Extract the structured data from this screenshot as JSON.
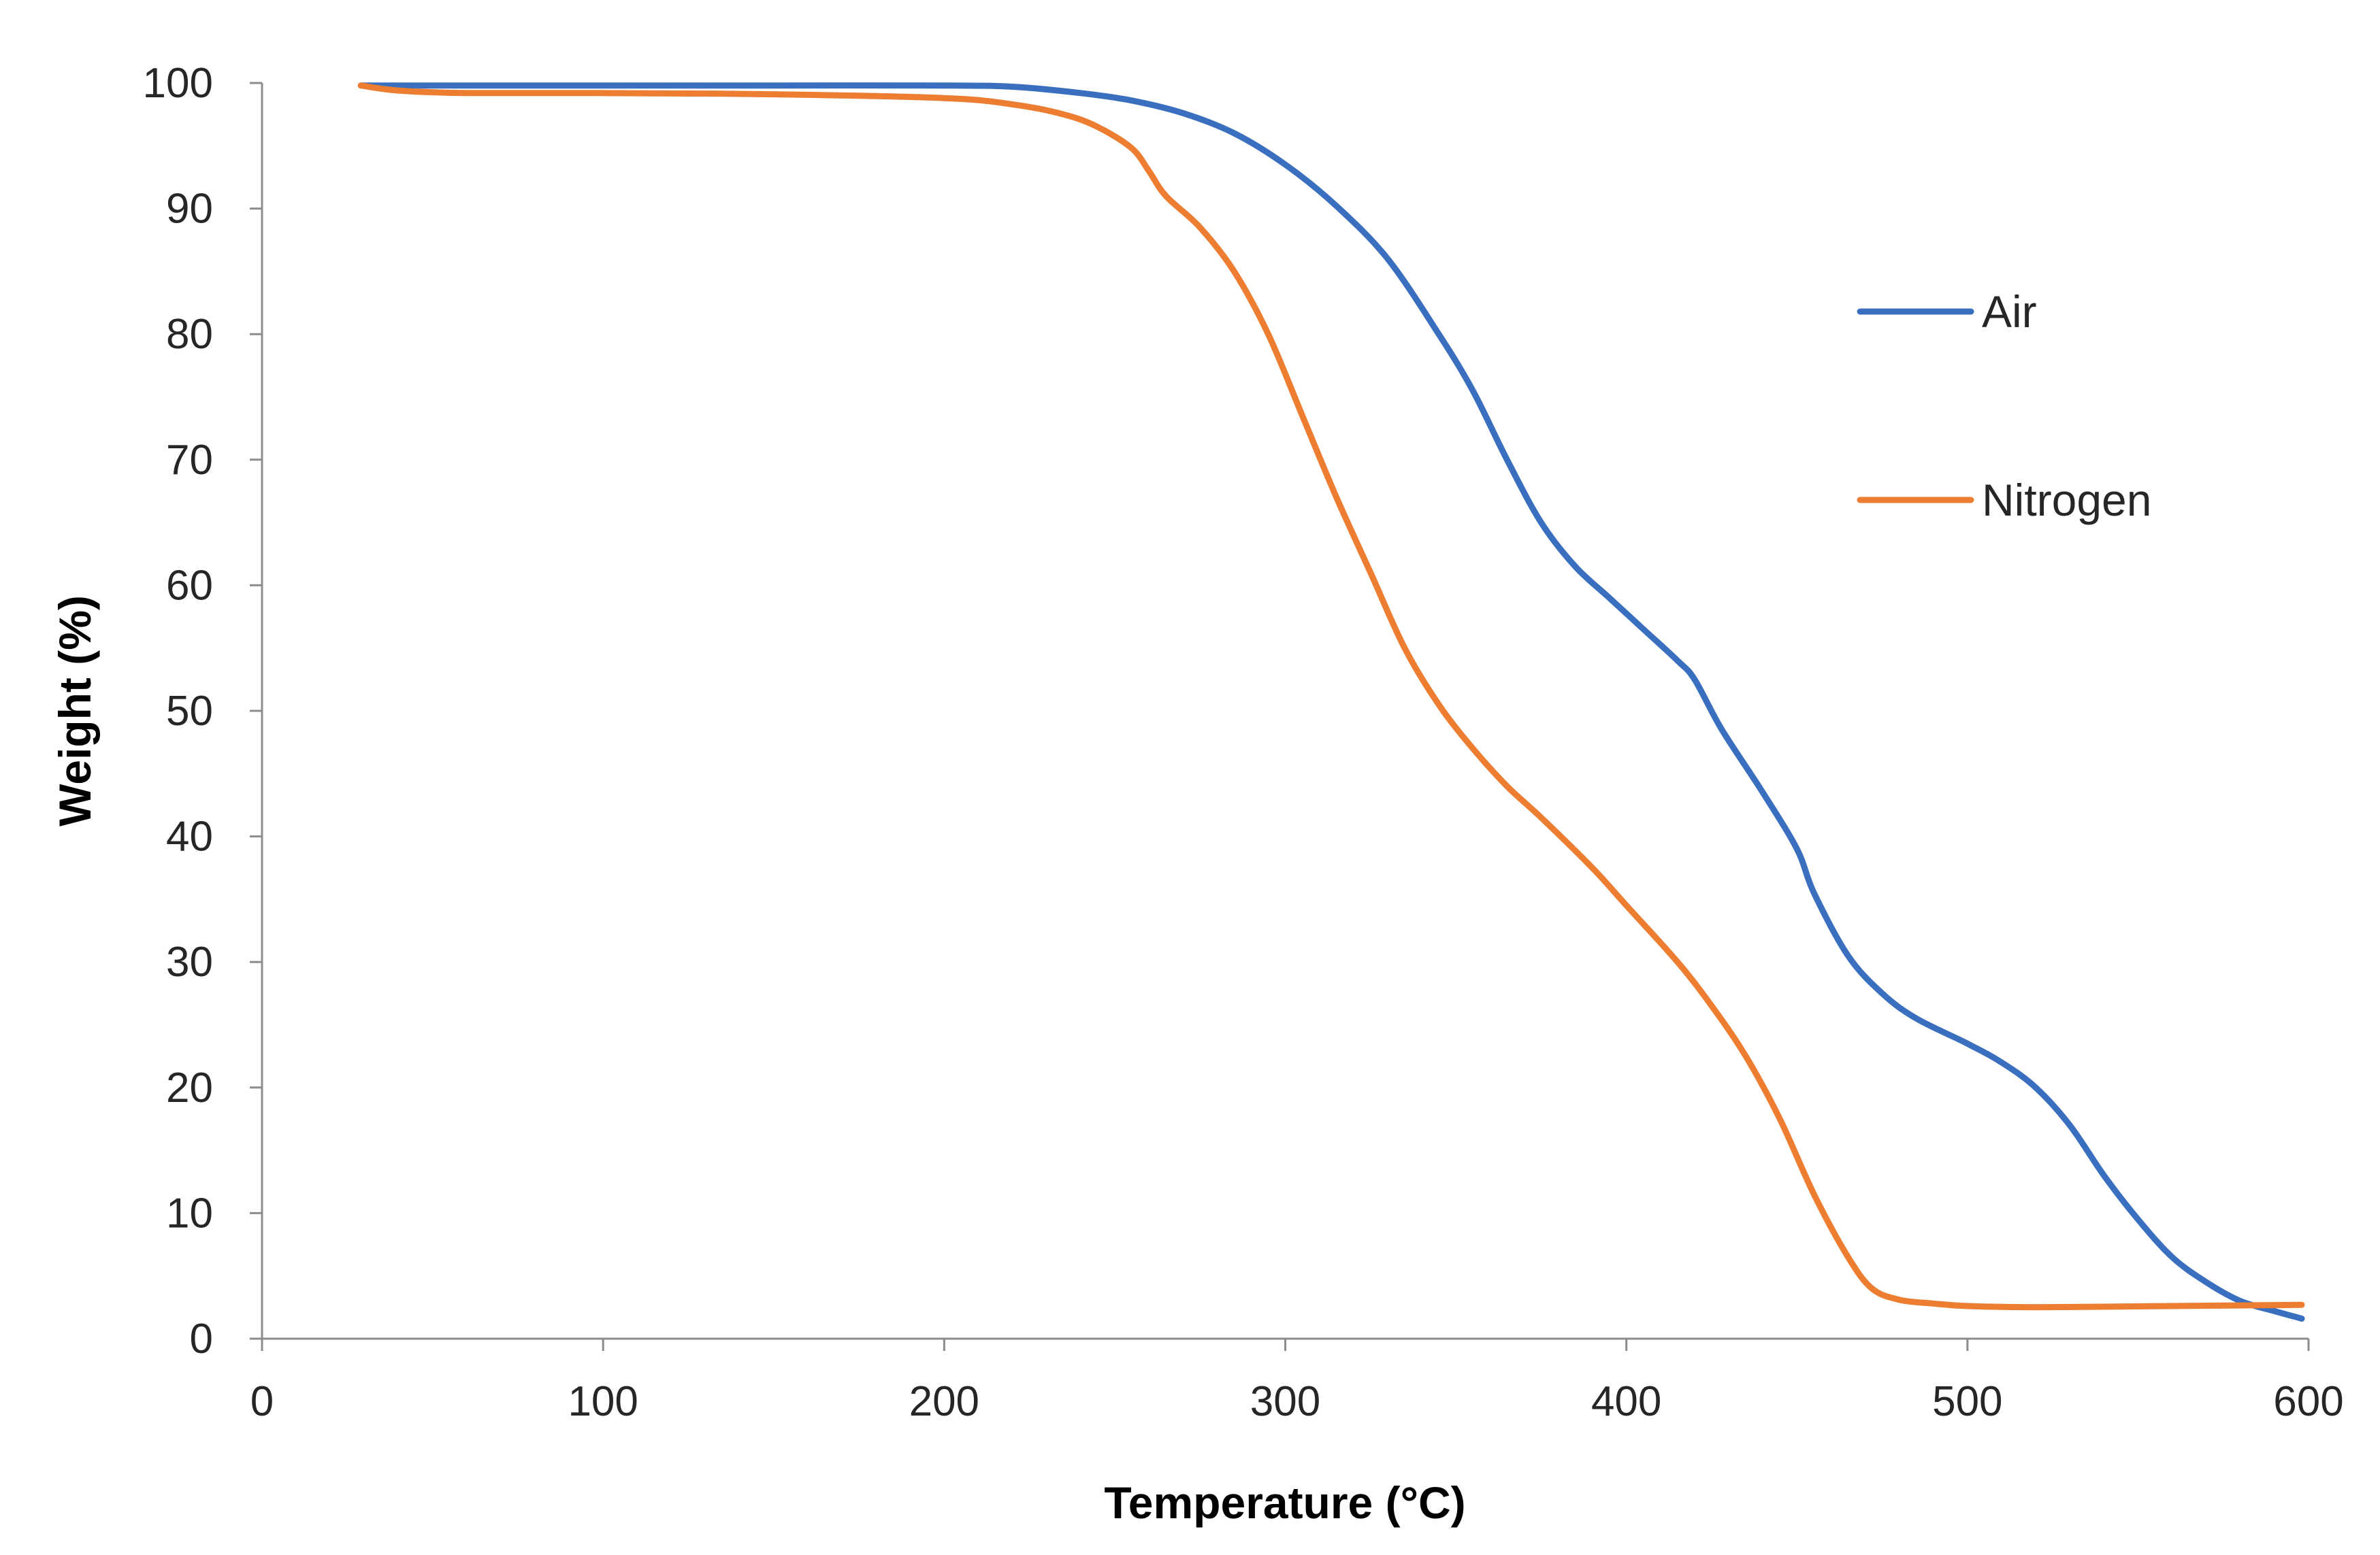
{
  "chart_data": {
    "type": "line",
    "title": "",
    "xlabel": "Temperature (°C)",
    "ylabel": "Weight (%)",
    "xlim": [
      0,
      600
    ],
    "ylim": [
      0,
      100
    ],
    "xticks": [
      0,
      100,
      200,
      300,
      400,
      500,
      600
    ],
    "yticks": [
      0,
      10,
      20,
      30,
      40,
      50,
      60,
      70,
      80,
      90,
      100
    ],
    "x_tick_labels": [
      "0",
      "100",
      "200",
      "300",
      "400",
      "500",
      "600"
    ],
    "y_tick_labels": [
      "0",
      "10",
      "20",
      "30",
      "40",
      "50",
      "60",
      "70",
      "80",
      "90",
      "100"
    ],
    "grid": false,
    "legend_position": "right",
    "series": [
      {
        "name": "Air",
        "color": "#3a6fbf",
        "points": [
          [
            29,
            99.8
          ],
          [
            60,
            99.8
          ],
          [
            100,
            99.8
          ],
          [
            150,
            99.8
          ],
          [
            200,
            99.8
          ],
          [
            220,
            99.7
          ],
          [
            240,
            99.2
          ],
          [
            255,
            98.6
          ],
          [
            270,
            97.6
          ],
          [
            285,
            96.0
          ],
          [
            300,
            93.5
          ],
          [
            315,
            90.2
          ],
          [
            330,
            86.0
          ],
          [
            345,
            80.0
          ],
          [
            355,
            75.5
          ],
          [
            365,
            70.0
          ],
          [
            375,
            65.0
          ],
          [
            385,
            61.5
          ],
          [
            395,
            59.0
          ],
          [
            405,
            56.5
          ],
          [
            415,
            54.0
          ],
          [
            420,
            52.5
          ],
          [
            428,
            48.5
          ],
          [
            440,
            43.5
          ],
          [
            450,
            39.0
          ],
          [
            455,
            35.5
          ],
          [
            465,
            30.5
          ],
          [
            475,
            27.5
          ],
          [
            485,
            25.5
          ],
          [
            500,
            23.5
          ],
          [
            510,
            22.0
          ],
          [
            520,
            20.0
          ],
          [
            530,
            17.0
          ],
          [
            540,
            13.0
          ],
          [
            550,
            9.5
          ],
          [
            560,
            6.5
          ],
          [
            570,
            4.5
          ],
          [
            580,
            3.0
          ],
          [
            590,
            2.2
          ],
          [
            598,
            1.6
          ]
        ]
      },
      {
        "name": "Nitrogen",
        "color": "#ed7d31",
        "points": [
          [
            29,
            99.8
          ],
          [
            40,
            99.4
          ],
          [
            60,
            99.2
          ],
          [
            100,
            99.2
          ],
          [
            150,
            99.1
          ],
          [
            200,
            98.8
          ],
          [
            220,
            98.3
          ],
          [
            235,
            97.5
          ],
          [
            245,
            96.5
          ],
          [
            255,
            94.8
          ],
          [
            260,
            93.0
          ],
          [
            265,
            91.0
          ],
          [
            275,
            88.5
          ],
          [
            285,
            85.0
          ],
          [
            295,
            80.0
          ],
          [
            305,
            73.5
          ],
          [
            315,
            67.0
          ],
          [
            325,
            61.0
          ],
          [
            335,
            55.0
          ],
          [
            345,
            50.5
          ],
          [
            355,
            47.0
          ],
          [
            365,
            44.0
          ],
          [
            375,
            41.5
          ],
          [
            390,
            37.5
          ],
          [
            400,
            34.5
          ],
          [
            415,
            30.0
          ],
          [
            425,
            26.5
          ],
          [
            435,
            22.5
          ],
          [
            445,
            17.5
          ],
          [
            455,
            11.5
          ],
          [
            465,
            6.5
          ],
          [
            472,
            4.0
          ],
          [
            480,
            3.1
          ],
          [
            490,
            2.8
          ],
          [
            500,
            2.6
          ],
          [
            520,
            2.5
          ],
          [
            560,
            2.6
          ],
          [
            598,
            2.7
          ]
        ]
      }
    ]
  }
}
